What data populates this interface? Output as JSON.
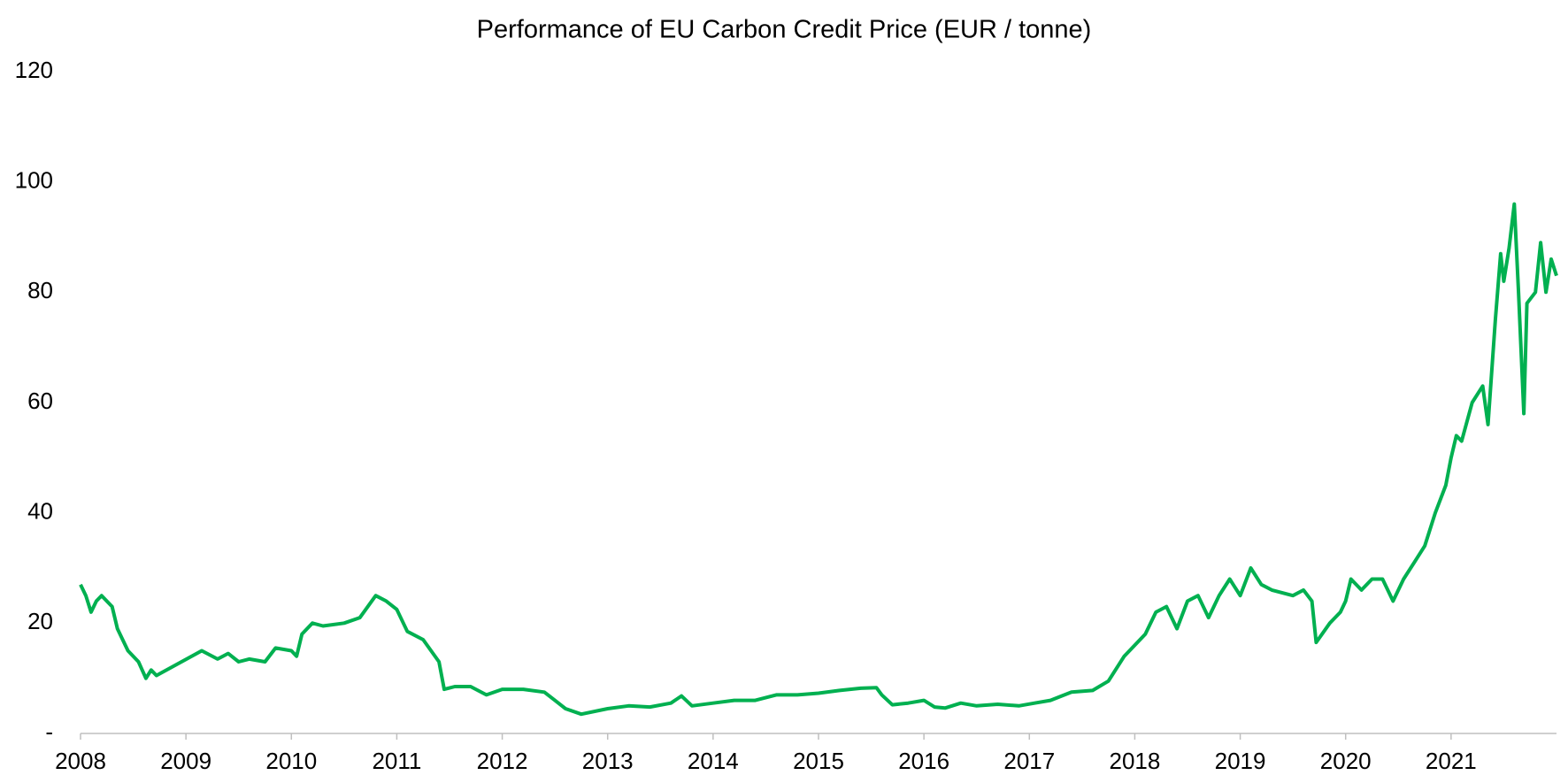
{
  "chart_data": {
    "type": "line",
    "title": "Performance of EU Carbon Credit Price (EUR / tonne)",
    "color": "#00b050",
    "xlim": [
      2008,
      2022
    ],
    "xticks": [
      2008,
      2009,
      2010,
      2011,
      2012,
      2013,
      2014,
      2015,
      2016,
      2017,
      2018,
      2019,
      2020,
      2021
    ],
    "ylim": [
      0,
      120
    ],
    "yticks": [
      {
        "value": 0,
        "label": "-"
      },
      20,
      40,
      60,
      80,
      100,
      120
    ],
    "x": [
      2008.0,
      2008.05,
      2008.1,
      2008.15,
      2008.2,
      2008.3,
      2008.35,
      2008.45,
      2008.55,
      2008.62,
      2008.67,
      2008.72,
      2009.15,
      2009.3,
      2009.4,
      2009.5,
      2009.6,
      2009.75,
      2009.85,
      2010.0,
      2010.05,
      2010.1,
      2010.2,
      2010.3,
      2010.5,
      2010.65,
      2010.8,
      2010.9,
      2011.0,
      2011.1,
      2011.25,
      2011.4,
      2011.45,
      2011.55,
      2011.7,
      2011.85,
      2012.0,
      2012.2,
      2012.4,
      2012.5,
      2012.6,
      2012.75,
      2013.0,
      2013.2,
      2013.4,
      2013.6,
      2013.7,
      2013.8,
      2014.0,
      2014.2,
      2014.4,
      2014.6,
      2014.8,
      2015.0,
      2015.2,
      2015.4,
      2015.55,
      2015.6,
      2015.7,
      2015.85,
      2016.0,
      2016.1,
      2016.2,
      2016.35,
      2016.5,
      2016.7,
      2016.9,
      2017.05,
      2017.2,
      2017.4,
      2017.6,
      2017.75,
      2017.9,
      2018.0,
      2018.1,
      2018.2,
      2018.3,
      2018.4,
      2018.5,
      2018.6,
      2018.7,
      2018.8,
      2018.9,
      2019.0,
      2019.1,
      2019.2,
      2019.3,
      2019.5,
      2019.6,
      2019.68,
      2019.72,
      2019.85,
      2019.95,
      2020.0,
      2020.05,
      2020.15,
      2020.25,
      2020.35,
      2020.45,
      2020.55,
      2020.65,
      2020.75,
      2020.85,
      2020.95,
      2021.0,
      2021.05,
      2021.1,
      2021.2,
      2021.3,
      2021.35,
      2021.42,
      2021.47,
      2021.5,
      2021.55,
      2021.6,
      2021.64,
      2021.69,
      2021.72,
      2021.8,
      2021.85,
      2021.9,
      2021.95,
      2022.0
    ],
    "values": [
      27,
      25,
      22,
      24,
      25,
      23,
      19,
      15,
      13,
      10,
      11.5,
      10.5,
      15,
      13.5,
      14.5,
      13,
      13.5,
      13,
      15.5,
      15,
      14,
      18,
      20,
      19.5,
      20,
      21,
      25,
      24,
      22.5,
      18.5,
      17,
      13,
      8,
      8.5,
      8.5,
      7,
      8,
      8,
      7.5,
      6,
      4.5,
      3.5,
      4.5,
      5,
      4.8,
      5.5,
      6.8,
      5,
      5.5,
      6,
      6,
      7,
      7,
      7.3,
      7.8,
      8.2,
      8.3,
      7,
      5.2,
      5.5,
      6,
      4.8,
      4.6,
      5.5,
      5,
      5.3,
      5,
      5.5,
      6,
      7.5,
      7.8,
      9.5,
      14,
      16,
      18,
      22,
      23,
      19,
      24,
      25,
      21,
      25,
      28,
      25,
      30,
      27,
      26,
      25,
      26,
      24,
      16.5,
      20,
      22,
      24,
      28,
      26,
      28,
      28,
      24,
      28,
      31,
      34,
      40,
      45,
      50,
      54,
      53,
      60,
      63,
      56,
      75,
      87,
      82,
      88,
      96,
      80,
      58,
      78,
      80,
      89,
      80,
      86,
      83
    ]
  }
}
